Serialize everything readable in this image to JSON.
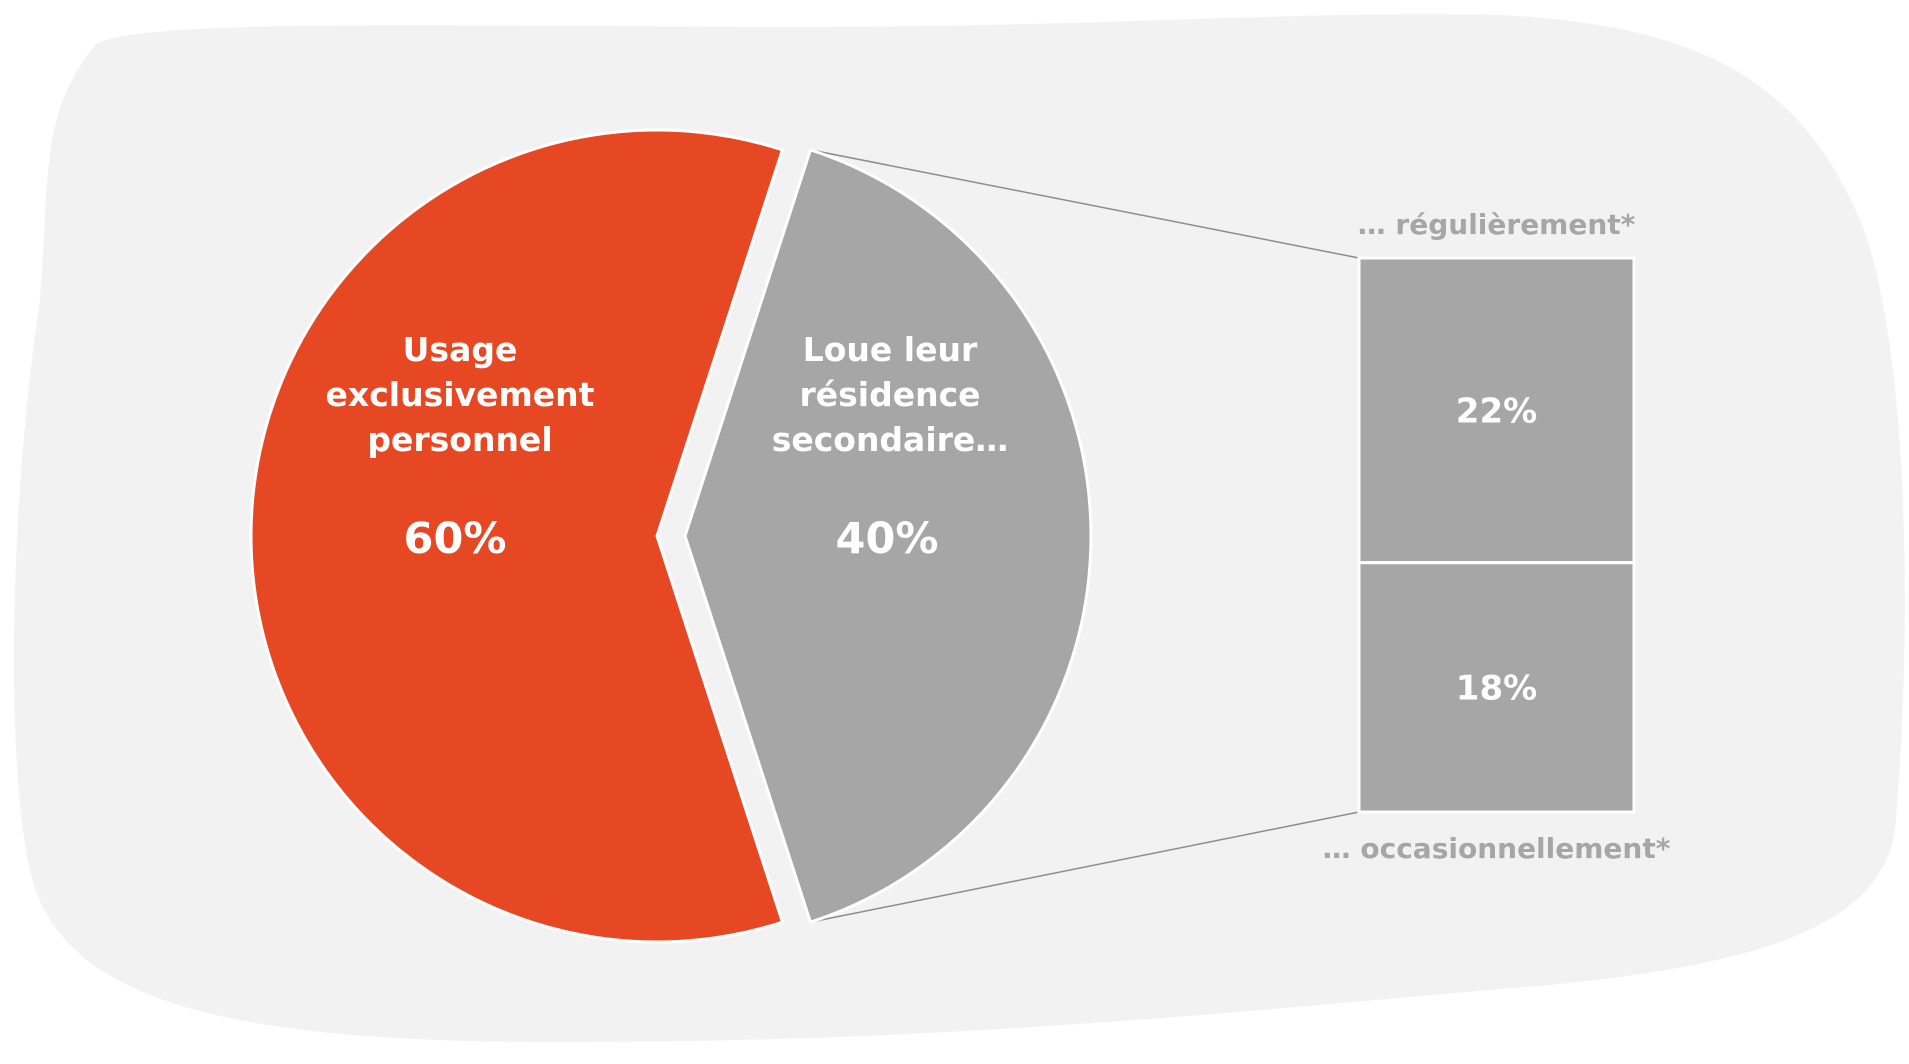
{
  "chart_data": {
    "type": "pie",
    "subtype": "pie-of-bar",
    "slices": [
      {
        "label_lines": [
          "Usage",
          "exclusivement",
          "personnel"
        ],
        "value": 60,
        "value_label": "60%",
        "color": "#e54823"
      },
      {
        "label_lines": [
          "Loue leur",
          "résidence",
          "secondaire…"
        ],
        "value": 40,
        "value_label": "40%",
        "color": "#a6a6a6",
        "exploded": true
      }
    ],
    "breakdown": {
      "of_slice": 1,
      "segments": [
        {
          "caption": "… régulièrement*",
          "value": 22,
          "value_label": "22%",
          "color": "#a6a6a6"
        },
        {
          "caption": "… occasionnellement*",
          "value": 18,
          "value_label": "18%",
          "color": "#a6a6a6"
        }
      ]
    },
    "background_color": "#f2f2f2",
    "connector_color": "#8c8c8c"
  }
}
